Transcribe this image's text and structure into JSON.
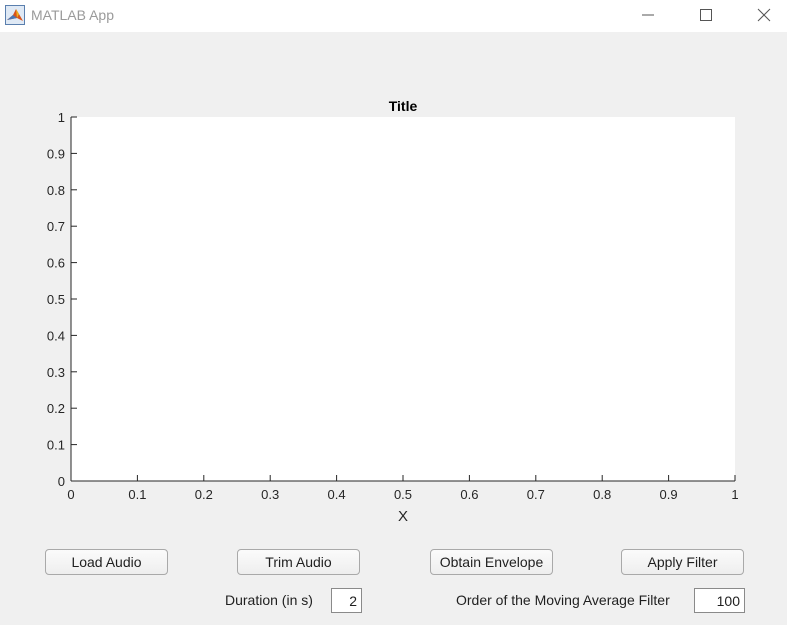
{
  "window": {
    "title": "MATLAB App",
    "controls": [
      "minimize-icon",
      "maximize-icon",
      "close-icon"
    ]
  },
  "chart_data": {
    "type": "line",
    "title": "Title",
    "xlabel": "X",
    "ylabel": "",
    "xlim": [
      0,
      1
    ],
    "ylim": [
      0,
      1
    ],
    "x_ticks": [
      "0",
      "0.1",
      "0.2",
      "0.3",
      "0.4",
      "0.5",
      "0.6",
      "0.7",
      "0.8",
      "0.9",
      "1"
    ],
    "y_ticks": [
      "0",
      "0.1",
      "0.2",
      "0.3",
      "0.4",
      "0.5",
      "0.6",
      "0.7",
      "0.8",
      "0.9",
      "1"
    ],
    "series": [],
    "grid": false
  },
  "buttons": {
    "load_audio": "Load Audio",
    "trim_audio": "Trim Audio",
    "obtain_envelope": "Obtain Envelope",
    "apply_filter": "Apply Filter"
  },
  "fields": {
    "duration": {
      "label": "Duration (in s)",
      "value": "2"
    },
    "filter_order": {
      "label": "Order of the Moving Average Filter",
      "value": "100"
    }
  },
  "colors": {
    "background": "#f0f0f0",
    "axes_background": "#ffffff",
    "axes_line": "#262626",
    "titlebar_text": "#9a9a9a"
  }
}
